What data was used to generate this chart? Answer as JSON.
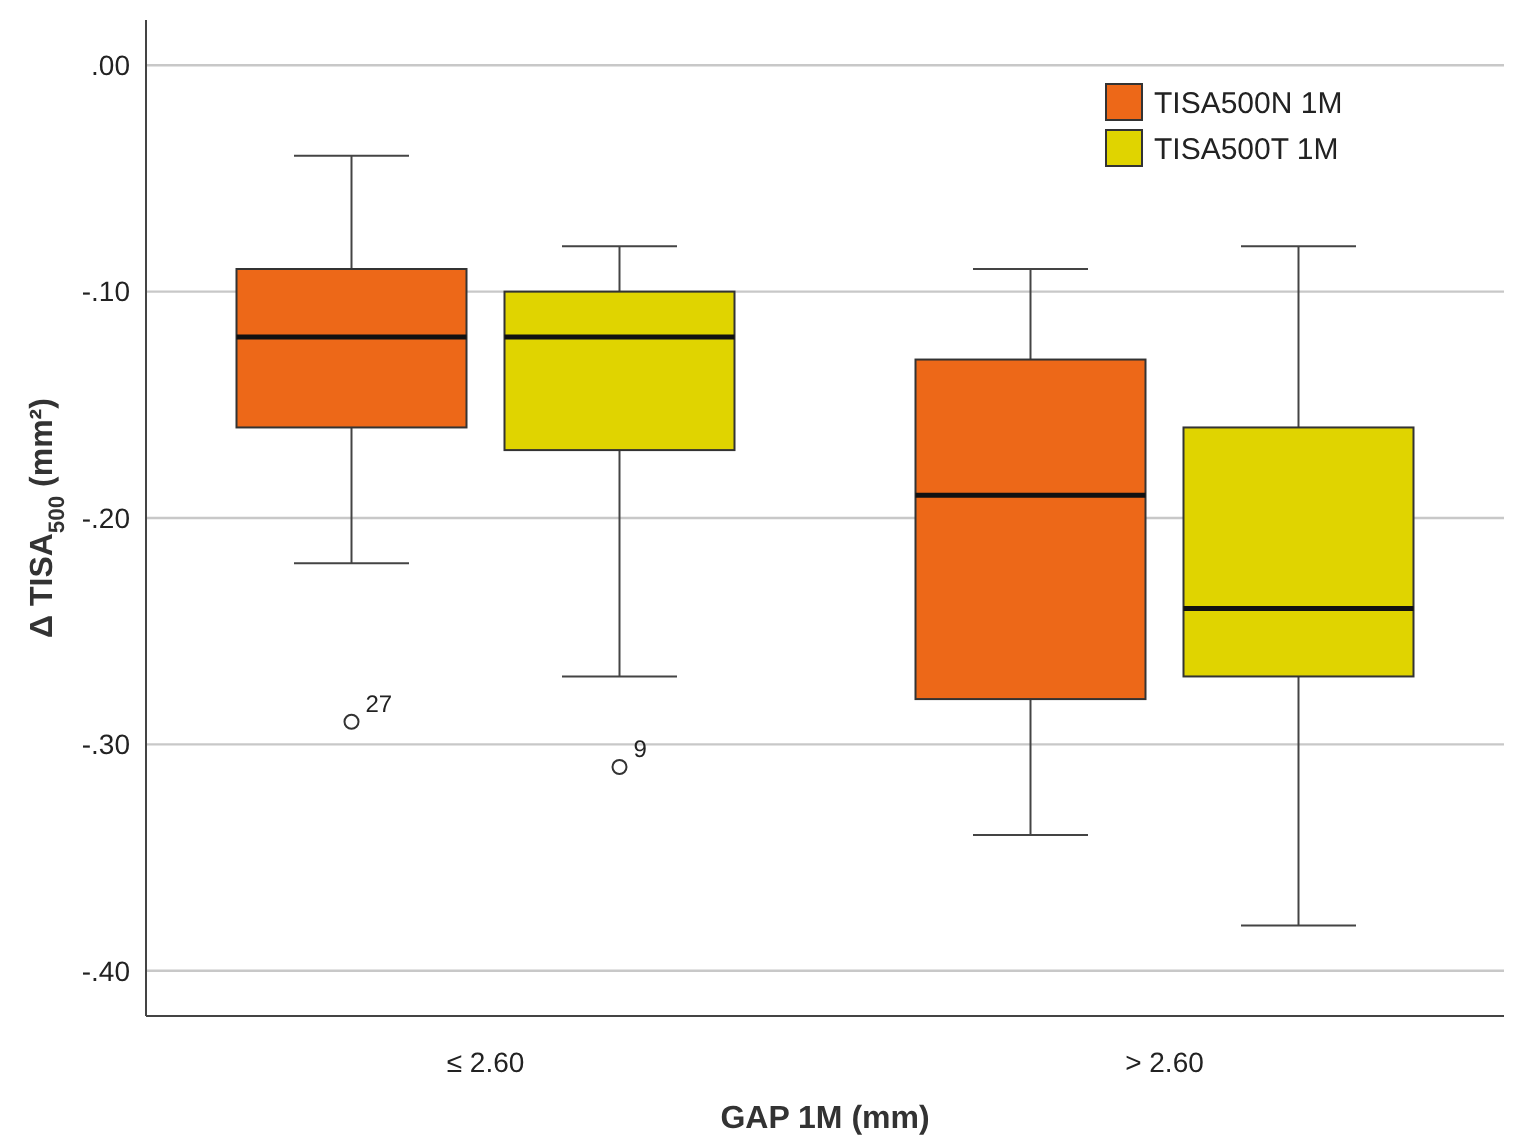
{
  "chart_data": {
    "type": "box",
    "xlabel": "GAP 1M (mm)",
    "ylabel": "Δ TISA$_{500}$ (mm²)",
    "categories": [
      "≤ 2.60",
      "> 2.60"
    ],
    "ylim": [
      -0.42,
      0.02
    ],
    "yticks": [
      {
        "value": 0,
        "label": ".00"
      },
      {
        "value": -0.1,
        "label": "-.10"
      },
      {
        "value": -0.2,
        "label": "-.20"
      },
      {
        "value": -0.3,
        "label": "-.30"
      },
      {
        "value": -0.4,
        "label": "-.40"
      }
    ],
    "grid": "y",
    "legend": "top right",
    "series": [
      {
        "name": "TISA500N 1M",
        "color": "#ed6818",
        "boxes": [
          {
            "low": -0.22,
            "q1": -0.16,
            "median": -0.12,
            "q3": -0.09,
            "high": -0.04,
            "outliers": [
              -0.29
            ]
          },
          {
            "low": -0.34,
            "q1": -0.28,
            "median": -0.19,
            "q3": -0.13,
            "high": -0.09
          }
        ]
      },
      {
        "name": "TISA500T 1M",
        "color": "#e0d400",
        "boxes": [
          {
            "low": -0.27,
            "q1": -0.17,
            "median": -0.12,
            "q3": -0.1,
            "high": -0.08,
            "outliers": [
              -0.31
            ]
          },
          {
            "low": -0.38,
            "q1": -0.27,
            "median": -0.24,
            "q3": -0.16,
            "high": -0.08
          }
        ]
      }
    ],
    "annotations": [
      "27",
      "9"
    ]
  }
}
